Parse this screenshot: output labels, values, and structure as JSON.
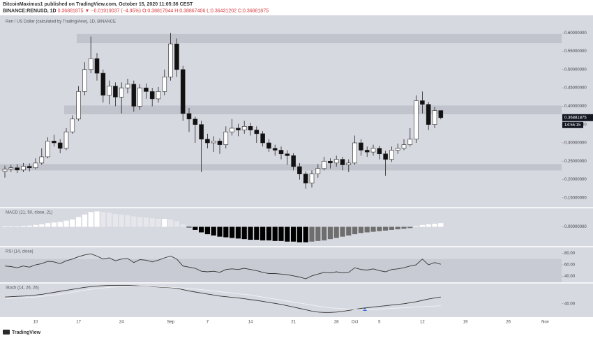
{
  "header": {
    "author": "BitcoinMaximus1 published on TradingView.com, October 15, 2020 11:05:36 CEST",
    "symbol": "BINANCE:RENUSD, 1D",
    "change": "0.36881875 ▼ −0.01919037 (−4.95%)",
    "ohlc": [
      "O:0.38817944",
      "H:0.38867406",
      "L:0.36431202",
      "C:0.36881875"
    ]
  },
  "footer": {
    "text": "TradingView"
  },
  "chart_data": {
    "type": "candlestick",
    "title": "Ren / US Dollar (calculated by TradingView), 1D, BINANCE",
    "categories": [
      null,
      null,
      null,
      null,
      null,
      "10",
      null,
      null,
      null,
      null,
      null,
      null,
      "17",
      null,
      null,
      null,
      null,
      null,
      null,
      "24",
      null,
      null,
      null,
      null,
      null,
      null,
      null,
      "Sep",
      null,
      null,
      null,
      null,
      null,
      "7",
      null,
      null,
      null,
      null,
      null,
      null,
      "14",
      null,
      null,
      null,
      null,
      null,
      null,
      "21",
      null,
      null,
      null,
      null,
      null,
      null,
      "28",
      null,
      null,
      "Oct",
      null,
      null,
      null,
      "5",
      null,
      null,
      null,
      null,
      null,
      null,
      "12",
      null,
      null,
      null,
      null,
      null,
      null,
      "19",
      null,
      null,
      null,
      null,
      null,
      null,
      "26",
      null,
      null,
      null,
      null,
      null,
      "Nov"
    ],
    "open": [
      0.222,
      0.228,
      0.232,
      0.226,
      0.236,
      0.232,
      0.245,
      0.262,
      0.305,
      0.3,
      0.285,
      0.33,
      0.365,
      0.44,
      0.5,
      0.53,
      0.49,
      0.43,
      0.455,
      0.425,
      0.45,
      0.46,
      0.4,
      0.45,
      0.44,
      0.42,
      0.44,
      0.48,
      0.57,
      0.5,
      0.38,
      0.365,
      0.35,
      0.31,
      0.3,
      0.305,
      0.295,
      0.33,
      0.34,
      0.335,
      0.345,
      0.335,
      0.325,
      0.3,
      0.285,
      0.28,
      0.27,
      0.265,
      0.235,
      0.215,
      0.19,
      0.215,
      0.23,
      0.25,
      0.245,
      0.255,
      0.24,
      0.245,
      0.3,
      0.28,
      0.275,
      0.285,
      0.27,
      0.255,
      0.28,
      0.285,
      0.295,
      0.31,
      0.415,
      0.405,
      0.35,
      0.38817944,
      null,
      null,
      null,
      null,
      null,
      null,
      null,
      null,
      null,
      null,
      null,
      null,
      null,
      null,
      null,
      null,
      null
    ],
    "high": [
      0.238,
      0.24,
      0.242,
      0.245,
      0.244,
      0.258,
      0.285,
      0.315,
      0.322,
      0.31,
      0.34,
      0.375,
      0.455,
      0.52,
      0.59,
      0.545,
      0.5,
      0.47,
      0.465,
      0.465,
      0.475,
      0.47,
      0.46,
      0.462,
      0.45,
      0.452,
      0.5,
      0.6,
      0.585,
      0.51,
      0.395,
      0.372,
      0.36,
      0.325,
      0.318,
      0.312,
      0.345,
      0.365,
      0.352,
      0.36,
      0.355,
      0.345,
      0.332,
      0.31,
      0.295,
      0.29,
      0.28,
      0.272,
      0.245,
      0.222,
      0.225,
      0.242,
      0.262,
      0.258,
      0.265,
      0.262,
      0.255,
      0.32,
      0.31,
      0.29,
      0.295,
      0.292,
      0.278,
      0.29,
      0.298,
      0.31,
      0.34,
      0.43,
      0.44,
      0.412,
      0.398,
      0.38867406,
      null,
      null,
      null,
      null,
      null,
      null,
      null,
      null,
      null,
      null,
      null,
      null,
      null,
      null,
      null,
      null,
      null
    ],
    "low": [
      0.205,
      0.22,
      0.218,
      0.22,
      0.222,
      0.228,
      0.24,
      0.258,
      0.29,
      0.272,
      0.28,
      0.325,
      0.36,
      0.43,
      0.49,
      0.47,
      0.41,
      0.405,
      0.4,
      0.38,
      0.435,
      0.385,
      0.39,
      0.42,
      0.4,
      0.41,
      0.43,
      0.47,
      0.48,
      0.36,
      0.33,
      0.3,
      0.22,
      0.285,
      0.275,
      0.27,
      0.285,
      0.32,
      0.318,
      0.325,
      0.32,
      0.3,
      0.29,
      0.275,
      0.265,
      0.255,
      0.24,
      0.225,
      0.2,
      0.175,
      0.178,
      0.205,
      0.225,
      0.23,
      0.235,
      0.225,
      0.22,
      0.24,
      0.265,
      0.262,
      0.265,
      0.255,
      0.21,
      0.248,
      0.27,
      0.28,
      0.29,
      0.3,
      0.38,
      0.335,
      0.34,
      0.36431202,
      null,
      null,
      null,
      null,
      null,
      null,
      null,
      null,
      null,
      null,
      null,
      null,
      null,
      null,
      null,
      null,
      null
    ],
    "close": [
      0.228,
      0.232,
      0.226,
      0.236,
      0.232,
      0.245,
      0.262,
      0.305,
      0.3,
      0.285,
      0.33,
      0.365,
      0.44,
      0.5,
      0.53,
      0.49,
      0.43,
      0.455,
      0.425,
      0.45,
      0.46,
      0.4,
      0.45,
      0.44,
      0.42,
      0.44,
      0.48,
      0.57,
      0.5,
      0.38,
      0.365,
      0.35,
      0.31,
      0.3,
      0.305,
      0.295,
      0.33,
      0.34,
      0.335,
      0.345,
      0.335,
      0.325,
      0.3,
      0.285,
      0.28,
      0.27,
      0.265,
      0.235,
      0.215,
      0.19,
      0.215,
      0.23,
      0.25,
      0.245,
      0.255,
      0.24,
      0.245,
      0.3,
      0.28,
      0.275,
      0.285,
      0.27,
      0.255,
      0.28,
      0.285,
      0.295,
      0.31,
      0.415,
      0.405,
      0.35,
      0.38817944,
      0.36881875,
      null,
      null,
      null,
      null,
      null,
      null,
      null,
      null,
      null,
      null,
      null,
      null,
      null,
      null,
      null,
      null,
      null
    ],
    "up_color": "#ffffff",
    "down_color": "#111111",
    "ylim": [
      0.125,
      0.648
    ],
    "yticks": [
      {
        "value": 0.15,
        "label": "0.15000000"
      },
      {
        "value": 0.2,
        "label": "0.20000000"
      },
      {
        "value": 0.25,
        "label": "0.25000000"
      },
      {
        "value": 0.3,
        "label": "0.30000000"
      },
      {
        "value": 0.35,
        "label": "0.35000000"
      },
      {
        "value": 0.4,
        "label": "0.40000000"
      },
      {
        "value": 0.45,
        "label": "0.45000000"
      },
      {
        "value": 0.5,
        "label": "0.50000000"
      },
      {
        "value": 0.55,
        "label": "0.55000000"
      },
      {
        "value": 0.6,
        "label": "0.60000000"
      }
    ],
    "zones": [
      [
        0.572,
        0.597
      ],
      [
        0.378,
        0.402
      ],
      [
        0.225,
        0.242
      ]
    ],
    "last_price": 0.36881875,
    "countdown": "14:55:15",
    "indicators": [
      {
        "type": "bar",
        "title": "MACD (21, 50, close, 21)",
        "values": [
          0.001,
          0.001,
          0.001,
          0.0015,
          0.002,
          0.003,
          0.004,
          0.006,
          0.007,
          0.008,
          0.01,
          0.012,
          0.016,
          0.02,
          0.024,
          0.025,
          0.024,
          0.023,
          0.021,
          0.02,
          0.019,
          0.017,
          0.016,
          0.015,
          0.014,
          0.013,
          0.013,
          0.012,
          0.009,
          0.004,
          -0.001,
          -0.005,
          -0.009,
          -0.012,
          -0.014,
          -0.016,
          -0.017,
          -0.018,
          -0.019,
          -0.02,
          -0.021,
          -0.021,
          -0.022,
          -0.022,
          -0.023,
          -0.023,
          -0.024,
          -0.024,
          -0.025,
          -0.025,
          -0.024,
          -0.023,
          -0.022,
          -0.02,
          -0.018,
          -0.016,
          -0.014,
          -0.012,
          -0.01,
          -0.009,
          -0.008,
          -0.007,
          -0.006,
          -0.005,
          -0.004,
          -0.003,
          -0.002,
          0.001,
          0.003,
          0.004,
          0.005,
          0.006,
          null,
          null,
          null,
          null,
          null,
          null,
          null,
          null,
          null,
          null,
          null,
          null,
          null,
          null,
          null,
          null,
          null
        ],
        "colors": {
          "pos_rising": "#ffffff",
          "pos_falling": "#e6e7ec",
          "neg_falling": "#000000",
          "neg_rising": "#6e6e6e"
        },
        "ylim": [
          -0.03,
          0.03
        ],
        "yticks": [
          {
            "value": 0,
            "label": "0.00000000"
          }
        ]
      },
      {
        "type": "line",
        "title": "RSI (14, close)",
        "series": [
          {
            "color": "#333333",
            "values": [
              58,
              57,
              55,
              58,
              56,
              60,
              62,
              66,
              65,
              62,
              67,
              70,
              74,
              77,
              79,
              75,
              70,
              72,
              67,
              70,
              71,
              64,
              69,
              68,
              65,
              68,
              72,
              75,
              70,
              58,
              56,
              54,
              49,
              48,
              49,
              47,
              52,
              53,
              52,
              54,
              52,
              50,
              47,
              45,
              45,
              44,
              43,
              41,
              39,
              36,
              41,
              44,
              47,
              46,
              48,
              46,
              47,
              55,
              52,
              51,
              53,
              50,
              48,
              52,
              53,
              55,
              58,
              60,
              70,
              60,
              64,
              61,
              null,
              null,
              null,
              null,
              null,
              null,
              null,
              null,
              null,
              null,
              null,
              null,
              null,
              null,
              null,
              null,
              null
            ]
          }
        ],
        "band": [
          30,
          70
        ],
        "band_color": "#c9cbd4",
        "ylim": [
          30,
          90
        ],
        "yticks": [
          {
            "value": 80,
            "label": "80.00"
          },
          {
            "value": 60,
            "label": "60.00"
          },
          {
            "value": 40,
            "label": "40.00"
          }
        ]
      },
      {
        "type": "line",
        "title": "Stoch (14, 26, 26)",
        "series": [
          {
            "color": "#333333",
            "values": [
              60,
              61,
              62,
              63,
              64,
              66,
              68,
              71,
              74,
              77,
              80,
              83,
              86,
              89,
              91,
              93,
              94,
              95,
              95,
              95,
              95,
              94,
              93,
              92,
              91,
              90,
              89,
              88,
              86,
              82,
              78,
              75,
              72,
              69,
              66,
              63,
              61,
              59,
              57,
              55,
              52,
              50,
              47,
              44,
              41,
              38,
              34,
              30,
              26,
              22,
              18,
              15,
              14,
              14,
              15,
              17,
              20,
              23,
              26,
              28,
              30,
              32,
              34,
              36,
              38,
              40,
              43,
              46,
              50,
              54,
              57,
              60,
              null,
              null,
              null,
              null,
              null,
              null,
              null,
              null,
              null,
              null,
              null,
              null,
              null,
              null,
              null,
              null,
              null
            ]
          },
          {
            "color": "#f2f2f4",
            "values": [
              55,
              56,
              57,
              58,
              59,
              60,
              62,
              64,
              66,
              68,
              71,
              74,
              77,
              80,
              83,
              85,
              87,
              89,
              90,
              91,
              92,
              92,
              92,
              92,
              92,
              91,
              90,
              89,
              88,
              87,
              86,
              84,
              82,
              80,
              78,
              76,
              74,
              72,
              70,
              68,
              66,
              63,
              60,
              57,
              54,
              51,
              48,
              45,
              42,
              39,
              36,
              33,
              30,
              28,
              26,
              25,
              24,
              23,
              23,
              23,
              23,
              24,
              25,
              26,
              27,
              28,
              29,
              30,
              31,
              32,
              33,
              34,
              null,
              null,
              null,
              null,
              null,
              null,
              null,
              null,
              null,
              null,
              null,
              null,
              null,
              null,
              null,
              null,
              null
            ]
          }
        ],
        "ylim": [
          0,
          100
        ],
        "yticks": [
          {
            "value": 40,
            "label": "40.00"
          }
        ]
      }
    ]
  }
}
